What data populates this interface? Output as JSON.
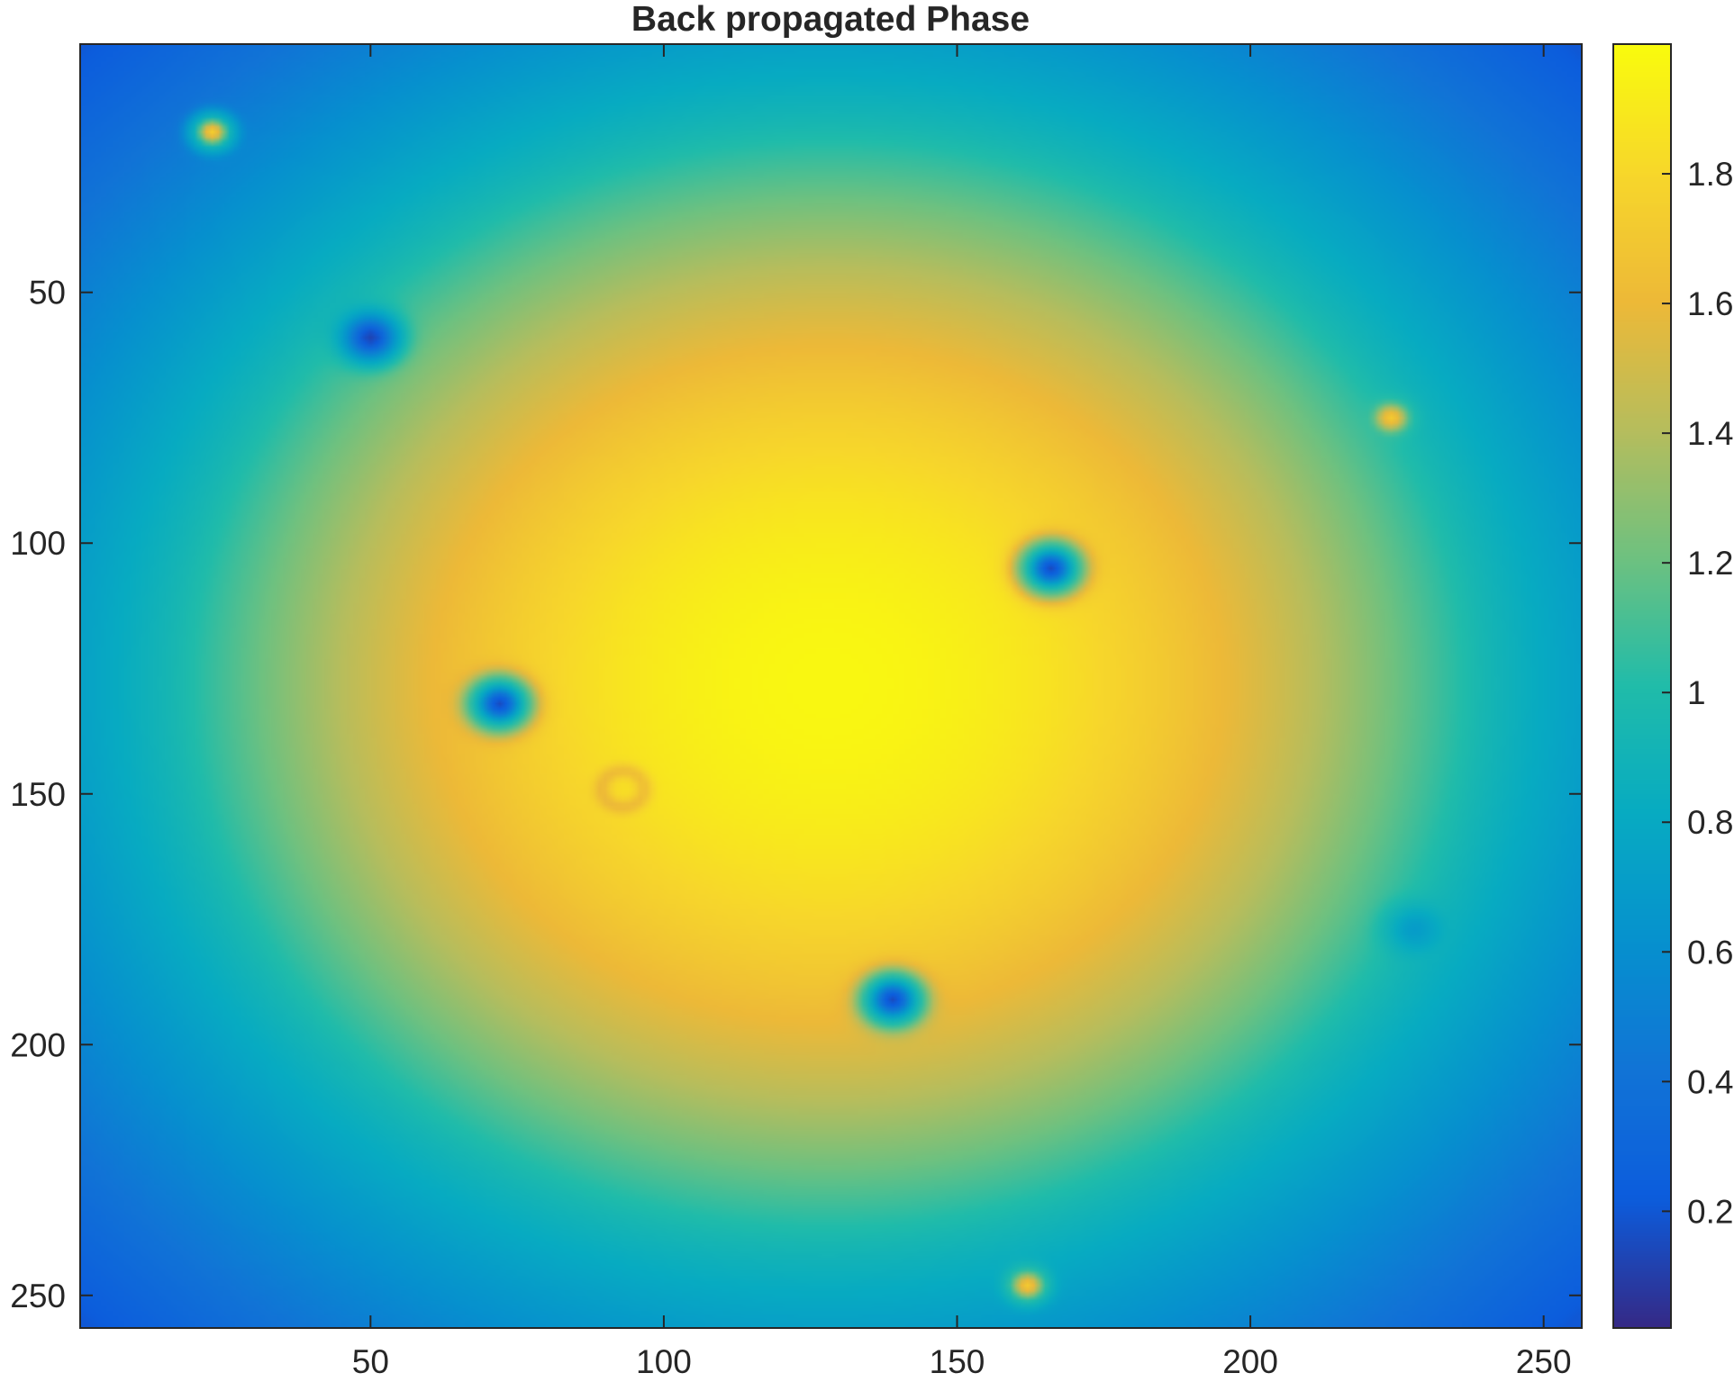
{
  "chart_data": {
    "type": "heatmap",
    "title": "Back propagated Phase",
    "xlabel": "",
    "ylabel": "",
    "colormap": "parula",
    "image_size": [
      256,
      256
    ],
    "x_range": [
      0.5,
      256.5
    ],
    "y_range": [
      0.5,
      256.5
    ],
    "y_direction": "reverse",
    "x_ticks": [
      50,
      100,
      150,
      200,
      250
    ],
    "y_ticks": [
      50,
      100,
      150,
      200,
      250
    ],
    "x_tick_labels": [
      "50",
      "100",
      "150",
      "200",
      "250"
    ],
    "y_tick_labels": [
      "50",
      "100",
      "150",
      "200",
      "250"
    ],
    "colorbar": {
      "range": [
        0.02,
        2.0
      ],
      "ticks": [
        0.2,
        0.4,
        0.6,
        0.8,
        1,
        1.2,
        1.4,
        1.6,
        1.8
      ],
      "tick_labels": [
        "0.2",
        "0.4",
        "0.6",
        "0.8",
        "1",
        "1.2",
        "1.4",
        "1.6",
        "1.8"
      ]
    },
    "background": {
      "center": [
        128,
        128
      ],
      "center_value": 1.98,
      "value_at_radius_110": 0.98,
      "corner_value": 0.2
    },
    "features": [
      {
        "x": 23,
        "y": 18,
        "kind": "peak",
        "value": 1.75
      },
      {
        "x": 50,
        "y": 59,
        "kind": "dip",
        "value": 0.12
      },
      {
        "x": 224,
        "y": 75,
        "kind": "peak",
        "value": 1.72
      },
      {
        "x": 166,
        "y": 105,
        "kind": "dip",
        "value": 0.15
      },
      {
        "x": 72,
        "y": 132,
        "kind": "dip",
        "value": 0.15
      },
      {
        "x": 93,
        "y": 149,
        "kind": "ring",
        "value": 1.65
      },
      {
        "x": 228,
        "y": 177,
        "kind": "dip",
        "value": 0.7
      },
      {
        "x": 139,
        "y": 191,
        "kind": "dip",
        "value": 0.15
      },
      {
        "x": 162,
        "y": 248,
        "kind": "peak",
        "value": 1.72
      }
    ]
  }
}
